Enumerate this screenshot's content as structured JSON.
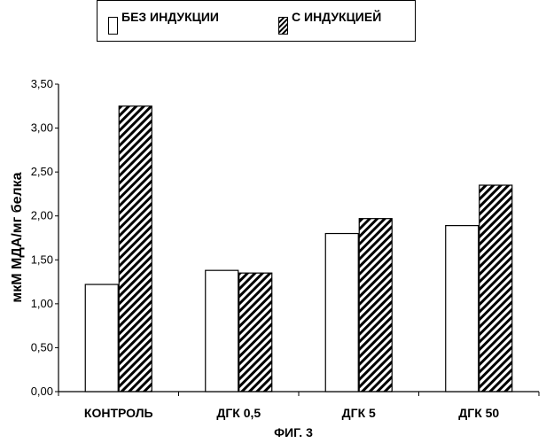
{
  "chart_data": {
    "type": "bar",
    "categories": [
      "КОНТРОЛЬ",
      "ДГК 0,5",
      "ДГК 5",
      "ДГК 50"
    ],
    "series": [
      {
        "name": "БЕЗ ИНДУКЦИИ",
        "values": [
          1.22,
          1.38,
          1.8,
          1.89
        ],
        "fill": "plain"
      },
      {
        "name": "С ИНДУКЦИЕЙ",
        "values": [
          3.25,
          1.35,
          1.97,
          2.35
        ],
        "fill": "hatched"
      }
    ],
    "ylabel": "мкМ МДА/мг белка",
    "ylim": [
      0,
      3.5
    ],
    "yticks": [
      "0,00",
      "0,50",
      "1,00",
      "1,50",
      "2,00",
      "2,50",
      "3,00",
      "3,50"
    ],
    "grid": false,
    "legend_position": "top",
    "caption": "ФИГ. 3",
    "colors": {
      "stroke": "#000000",
      "background": "#ffffff"
    }
  }
}
